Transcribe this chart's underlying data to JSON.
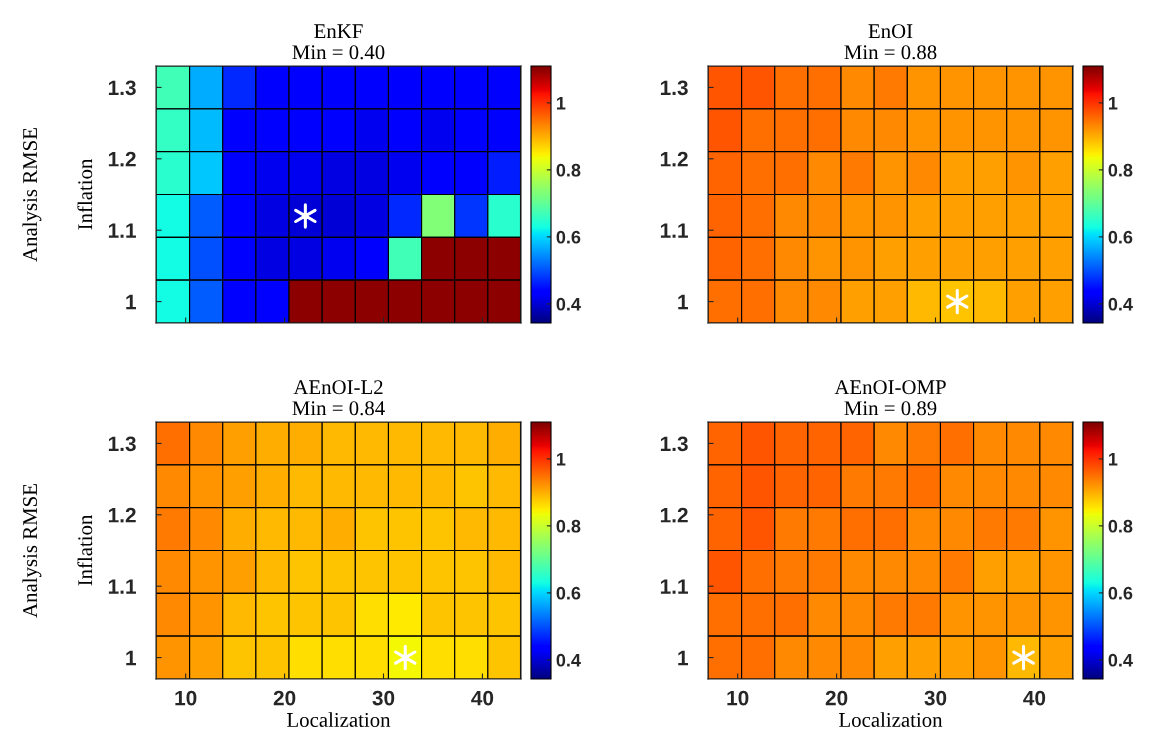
{
  "chart_data": [
    {
      "type": "heatmap",
      "title": "EnKF",
      "subtitle": "Min = 0.40",
      "ylabel": "Inflation",
      "annotations": [
        "Analysis RMSE"
      ],
      "tick_labels": "y",
      "x": [
        8.7,
        12.1,
        15.4,
        18.8,
        22.1,
        25.5,
        28.8,
        32.2,
        35.5,
        38.9,
        42.2
      ],
      "y": [
        1.3,
        1.24,
        1.18,
        1.12,
        1.06,
        1.0
      ],
      "xlim": [
        7,
        43.9
      ],
      "ylim": [
        0.97,
        1.33
      ],
      "xticks": [
        10,
        20,
        30,
        40
      ],
      "yticks": [
        1,
        1.1,
        1.2,
        1.3
      ],
      "clim": [
        0.343,
        1.11
      ],
      "cticks": [
        0.4,
        0.6,
        0.8,
        1
      ],
      "cells": [
        [
          0.67,
          0.57,
          0.47,
          0.44,
          0.44,
          0.44,
          0.44,
          0.44,
          0.44,
          0.44,
          0.44
        ],
        [
          0.66,
          0.58,
          0.44,
          0.43,
          0.43,
          0.43,
          0.42,
          0.43,
          0.42,
          0.43,
          0.44
        ],
        [
          0.65,
          0.59,
          0.44,
          0.42,
          0.42,
          0.41,
          0.41,
          0.42,
          0.43,
          0.44,
          0.46
        ],
        [
          0.63,
          0.51,
          0.43,
          0.41,
          0.4,
          0.4,
          0.41,
          0.47,
          0.73,
          0.48,
          0.65
        ],
        [
          0.63,
          0.5,
          0.43,
          0.41,
          0.41,
          0.42,
          0.44,
          0.67,
          1.1,
          1.1,
          1.1
        ],
        [
          0.63,
          0.51,
          0.43,
          0.43,
          1.1,
          1.1,
          1.1,
          1.1,
          1.1,
          1.1,
          1.1
        ]
      ],
      "series": [
        {
          "type": "scatter",
          "x": [
            22.1
          ],
          "values": [
            1.12
          ],
          "color": "#ffffff",
          "marker": "cross"
        }
      ]
    },
    {
      "type": "heatmap",
      "title": "EnOI",
      "subtitle": "Min = 0.88",
      "tick_labels": "y",
      "x": [
        8.7,
        12.1,
        15.4,
        18.8,
        22.1,
        25.5,
        28.8,
        32.2,
        35.5,
        38.9,
        42.2
      ],
      "y": [
        1.3,
        1.24,
        1.18,
        1.12,
        1.06,
        1.0
      ],
      "xlim": [
        7,
        43.9
      ],
      "ylim": [
        0.97,
        1.33
      ],
      "xticks": [
        10,
        20,
        30,
        40
      ],
      "yticks": [
        1,
        1.1,
        1.2,
        1.3
      ],
      "clim": [
        0.343,
        1.11
      ],
      "cticks": [
        0.4,
        0.6,
        0.8,
        1
      ],
      "cells": [
        [
          0.97,
          0.97,
          0.95,
          0.95,
          0.93,
          0.94,
          0.92,
          0.92,
          0.92,
          0.92,
          0.92
        ],
        [
          0.97,
          0.95,
          0.95,
          0.95,
          0.93,
          0.93,
          0.92,
          0.92,
          0.92,
          0.92,
          0.92
        ],
        [
          0.96,
          0.95,
          0.95,
          0.93,
          0.94,
          0.92,
          0.93,
          0.91,
          0.91,
          0.92,
          0.91
        ],
        [
          0.96,
          0.95,
          0.93,
          0.93,
          0.92,
          0.92,
          0.91,
          0.91,
          0.91,
          0.91,
          0.91
        ],
        [
          0.96,
          0.95,
          0.93,
          0.92,
          0.92,
          0.91,
          0.91,
          0.91,
          0.91,
          0.91,
          0.91
        ],
        [
          0.95,
          0.95,
          0.93,
          0.93,
          0.91,
          0.91,
          0.89,
          0.88,
          0.89,
          0.91,
          0.91
        ]
      ],
      "series": [
        {
          "type": "scatter",
          "x": [
            32.2
          ],
          "values": [
            1.0
          ],
          "color": "#ffffff",
          "marker": "cross"
        }
      ]
    },
    {
      "type": "heatmap",
      "title": "AEnOI-L2",
      "subtitle": "Min = 0.84",
      "xlabel": "Localization",
      "ylabel": "Inflation",
      "annotations": [
        "Analysis RMSE"
      ],
      "x": [
        8.7,
        12.1,
        15.4,
        18.8,
        22.1,
        25.5,
        28.8,
        32.2,
        35.5,
        38.9,
        42.2
      ],
      "y": [
        1.3,
        1.24,
        1.18,
        1.12,
        1.06,
        1.0
      ],
      "xlim": [
        7,
        43.9
      ],
      "ylim": [
        0.97,
        1.33
      ],
      "xticks": [
        10,
        20,
        30,
        40
      ],
      "yticks": [
        1,
        1.1,
        1.2,
        1.3
      ],
      "clim": [
        0.343,
        1.11
      ],
      "cticks": [
        0.4,
        0.6,
        0.8,
        1
      ],
      "cells": [
        [
          0.95,
          0.93,
          0.91,
          0.9,
          0.9,
          0.89,
          0.89,
          0.89,
          0.89,
          0.89,
          0.9
        ],
        [
          0.93,
          0.92,
          0.91,
          0.9,
          0.89,
          0.89,
          0.89,
          0.89,
          0.89,
          0.88,
          0.89
        ],
        [
          0.94,
          0.93,
          0.9,
          0.89,
          0.89,
          0.9,
          0.88,
          0.88,
          0.88,
          0.89,
          0.89
        ],
        [
          0.93,
          0.92,
          0.91,
          0.89,
          0.88,
          0.88,
          0.88,
          0.88,
          0.88,
          0.88,
          0.89
        ],
        [
          0.93,
          0.92,
          0.89,
          0.88,
          0.88,
          0.88,
          0.86,
          0.85,
          0.88,
          0.88,
          0.88
        ],
        [
          0.92,
          0.91,
          0.88,
          0.88,
          0.86,
          0.86,
          0.86,
          0.84,
          0.86,
          0.86,
          0.88
        ]
      ],
      "series": [
        {
          "type": "scatter",
          "x": [
            32.2
          ],
          "values": [
            1.0
          ],
          "color": "#ffffff",
          "marker": "cross"
        }
      ]
    },
    {
      "type": "heatmap",
      "title": "AEnOI-OMP",
      "subtitle": "Min = 0.89",
      "xlabel": "Localization",
      "x": [
        8.7,
        12.1,
        15.4,
        18.8,
        22.1,
        25.5,
        28.8,
        32.2,
        35.5,
        38.9,
        42.2
      ],
      "y": [
        1.3,
        1.24,
        1.18,
        1.12,
        1.06,
        1.0
      ],
      "xlim": [
        7,
        43.9
      ],
      "ylim": [
        0.97,
        1.33
      ],
      "xticks": [
        10,
        20,
        30,
        40
      ],
      "yticks": [
        1,
        1.1,
        1.2,
        1.3
      ],
      "clim": [
        0.343,
        1.11
      ],
      "cticks": [
        0.4,
        0.6,
        0.8,
        1
      ],
      "cells": [
        [
          0.96,
          0.97,
          0.96,
          0.96,
          0.96,
          0.93,
          0.94,
          0.95,
          0.93,
          0.93,
          0.93
        ],
        [
          0.96,
          0.97,
          0.96,
          0.96,
          0.94,
          0.94,
          0.95,
          0.93,
          0.93,
          0.93,
          0.93
        ],
        [
          0.96,
          0.97,
          0.94,
          0.94,
          0.95,
          0.95,
          0.93,
          0.93,
          0.94,
          0.94,
          0.92
        ],
        [
          0.97,
          0.95,
          0.94,
          0.94,
          0.93,
          0.93,
          0.93,
          0.94,
          0.91,
          0.91,
          0.92
        ],
        [
          0.95,
          0.95,
          0.95,
          0.93,
          0.93,
          0.94,
          0.94,
          0.92,
          0.92,
          0.92,
          0.92
        ],
        [
          0.95,
          0.95,
          0.93,
          0.93,
          0.93,
          0.91,
          0.91,
          0.91,
          0.92,
          0.89,
          0.91
        ]
      ],
      "series": [
        {
          "type": "scatter",
          "x": [
            38.9
          ],
          "values": [
            1.0
          ],
          "color": "#ffffff",
          "marker": "cross"
        }
      ]
    }
  ]
}
